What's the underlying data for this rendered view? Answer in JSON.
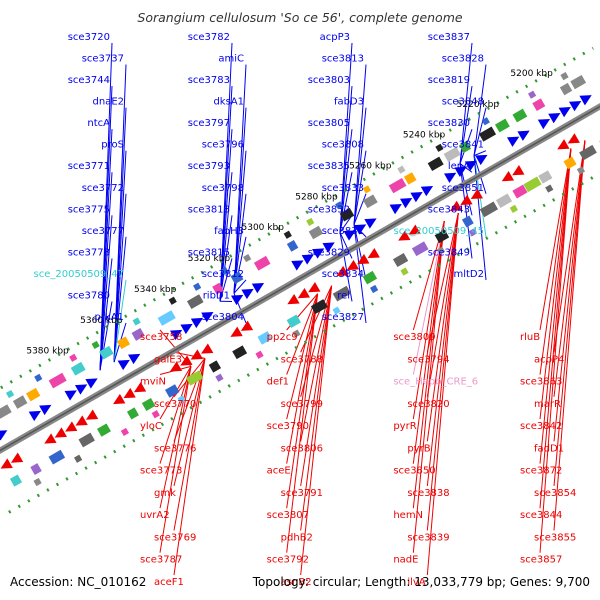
{
  "title": "Sorangium cellulosum 'So ce 56', complete genome",
  "footer": {
    "accession": "Accession: NC_010162",
    "summary": "Topology: circular; Length: 13,033,779 bp; Genes: 9,700"
  },
  "colors": {
    "forward": "#0000ee",
    "reverse": "#ee0000",
    "rna": "#33cccc",
    "pseudo": "#ee99cc",
    "scale": "#339933",
    "axis": "#888888"
  },
  "kbp_ticks": [
    "5200 kbp",
    "5220 kbp",
    "5240 kbp",
    "5260 kbp",
    "5280 kbp",
    "5300 kbp",
    "5320 kbp",
    "5340 kbp",
    "5360 kbp",
    "5380 kbp"
  ],
  "top_labels": [
    {
      "text": "sce3720",
      "color": "blue"
    },
    {
      "text": "sce3737",
      "color": "blue"
    },
    {
      "text": "sce3744",
      "color": "blue"
    },
    {
      "text": "dnaE2",
      "color": "blue"
    },
    {
      "text": "ntcA",
      "color": "blue"
    },
    {
      "text": "proS",
      "color": "blue"
    },
    {
      "text": "sce3771",
      "color": "blue"
    },
    {
      "text": "sce3772",
      "color": "blue"
    },
    {
      "text": "sce3775",
      "color": "blue"
    },
    {
      "text": "sce3777",
      "color": "blue"
    },
    {
      "text": "sce3778",
      "color": "blue"
    },
    {
      "text": "sce_20050509_47",
      "color": "cyan"
    },
    {
      "text": "sce3780",
      "color": "blue"
    },
    {
      "text": "prkA1",
      "color": "blue"
    },
    {
      "text": "sce3782",
      "color": "blue"
    },
    {
      "text": "amiC",
      "color": "blue"
    },
    {
      "text": "sce3783",
      "color": "blue"
    },
    {
      "text": "dksA1",
      "color": "blue"
    },
    {
      "text": "sce3797",
      "color": "blue"
    },
    {
      "text": "sce3796",
      "color": "blue"
    },
    {
      "text": "sce3793",
      "color": "blue"
    },
    {
      "text": "sce3798",
      "color": "blue"
    },
    {
      "text": "sce3818",
      "color": "blue"
    },
    {
      "text": "fabH3",
      "color": "blue"
    },
    {
      "text": "sce3815",
      "color": "blue"
    },
    {
      "text": "sce3812",
      "color": "blue"
    },
    {
      "text": "ribD1",
      "color": "blue"
    },
    {
      "text": "sce3804",
      "color": "blue"
    },
    {
      "text": "acpP3",
      "color": "blue"
    },
    {
      "text": "sce3813",
      "color": "blue"
    },
    {
      "text": "sce3803",
      "color": "blue"
    },
    {
      "text": "fabD3",
      "color": "blue"
    },
    {
      "text": "sce3805",
      "color": "blue"
    },
    {
      "text": "sce3808",
      "color": "blue"
    },
    {
      "text": "sce3835",
      "color": "blue"
    },
    {
      "text": "sce3833",
      "color": "blue"
    },
    {
      "text": "sce3832",
      "color": "blue"
    },
    {
      "text": "sce3831",
      "color": "blue"
    },
    {
      "text": "sce3829",
      "color": "blue"
    },
    {
      "text": "sce3834",
      "color": "blue"
    },
    {
      "text": "rel",
      "color": "blue"
    },
    {
      "text": "sce3827",
      "color": "blue"
    },
    {
      "text": "sce3837",
      "color": "blue"
    },
    {
      "text": "sce3828",
      "color": "blue"
    },
    {
      "text": "sce3819",
      "color": "blue"
    },
    {
      "text": "sce3848",
      "color": "blue"
    },
    {
      "text": "sce3830",
      "color": "blue"
    },
    {
      "text": "sce3841",
      "color": "blue"
    },
    {
      "text": "lepA",
      "color": "blue"
    },
    {
      "text": "sce3851",
      "color": "blue"
    },
    {
      "text": "sce3843",
      "color": "blue"
    },
    {
      "text": "sce_20050509_45",
      "color": "cyan"
    },
    {
      "text": "sce3849",
      "color": "blue"
    },
    {
      "text": "mltD2",
      "color": "blue"
    }
  ],
  "bottom_labels": [
    {
      "text": "sce3758",
      "color": "red"
    },
    {
      "text": "galE3",
      "color": "red"
    },
    {
      "text": "mviN",
      "color": "red"
    },
    {
      "text": "sce3770",
      "color": "red"
    },
    {
      "text": "yloC",
      "color": "red"
    },
    {
      "text": "sce3776",
      "color": "red"
    },
    {
      "text": "sce3773",
      "color": "red"
    },
    {
      "text": "gmk",
      "color": "red"
    },
    {
      "text": "uvrA2",
      "color": "red"
    },
    {
      "text": "sce3769",
      "color": "red"
    },
    {
      "text": "sce3787",
      "color": "red"
    },
    {
      "text": "aceF1",
      "color": "red"
    },
    {
      "text": "pp2c9",
      "color": "red"
    },
    {
      "text": "sce3788",
      "color": "red"
    },
    {
      "text": "def1",
      "color": "red"
    },
    {
      "text": "sce3799",
      "color": "red"
    },
    {
      "text": "sce3790",
      "color": "red"
    },
    {
      "text": "sce3806",
      "color": "red"
    },
    {
      "text": "aceE",
      "color": "red"
    },
    {
      "text": "sce3791",
      "color": "red"
    },
    {
      "text": "sce3807",
      "color": "red"
    },
    {
      "text": "pdhB2",
      "color": "red"
    },
    {
      "text": "sce3792",
      "color": "red"
    },
    {
      "text": "asnB2",
      "color": "red"
    },
    {
      "text": "sce3809",
      "color": "red"
    },
    {
      "text": "sce3794",
      "color": "red"
    },
    {
      "text": "sce_Hepb_CRE_6",
      "color": "pink"
    },
    {
      "text": "sce3820",
      "color": "red"
    },
    {
      "text": "pyrR",
      "color": "red"
    },
    {
      "text": "pyrB",
      "color": "red"
    },
    {
      "text": "sce3850",
      "color": "red"
    },
    {
      "text": "sce3838",
      "color": "red"
    },
    {
      "text": "hemN",
      "color": "red"
    },
    {
      "text": "sce3839",
      "color": "red"
    },
    {
      "text": "nadE",
      "color": "red"
    },
    {
      "text": "ilvA",
      "color": "red"
    },
    {
      "text": "rluB",
      "color": "red"
    },
    {
      "text": "acpP4",
      "color": "red"
    },
    {
      "text": "sce3863",
      "color": "red"
    },
    {
      "text": "marR",
      "color": "red"
    },
    {
      "text": "sce3842",
      "color": "red"
    },
    {
      "text": "fadD1",
      "color": "red"
    },
    {
      "text": "sce3872",
      "color": "red"
    },
    {
      "text": "sce3854",
      "color": "red"
    },
    {
      "text": "sce3844",
      "color": "red"
    },
    {
      "text": "sce3855",
      "color": "red"
    },
    {
      "text": "sce3857",
      "color": "red"
    }
  ]
}
